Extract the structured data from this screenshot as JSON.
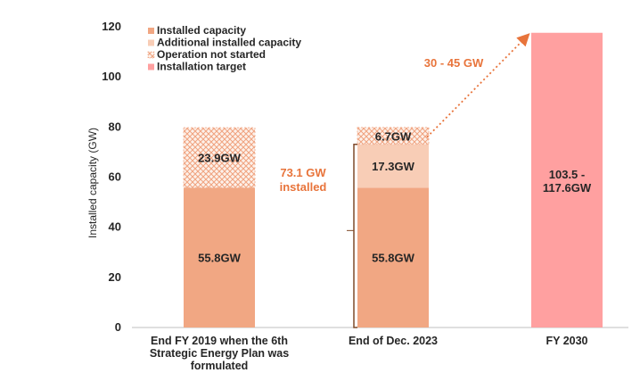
{
  "chart_data": {
    "type": "bar",
    "stacked": true,
    "title": "",
    "xlabel": "",
    "ylabel": "Installed capacity (GW)",
    "ylim": [
      0,
      120
    ],
    "yticks": [
      0,
      20,
      40,
      60,
      80,
      100,
      120
    ],
    "grid": false,
    "legend_position": "top-left",
    "categories": [
      [
        "End FY 2019 when the 6th",
        "Strategic Energy Plan was",
        "formulated"
      ],
      [
        "End of Dec. 2023"
      ],
      [
        "FY 2030"
      ]
    ],
    "series": [
      {
        "name": "Installed capacity",
        "color": "#f1a783",
        "pattern": "solid",
        "values": [
          55.8,
          55.8,
          null
        ],
        "labels": [
          "55.8GW",
          "55.8GW",
          ""
        ]
      },
      {
        "name": "Additional installed capacity",
        "color": "#f8cdb6",
        "pattern": "solid",
        "values": [
          null,
          17.3,
          null
        ],
        "labels": [
          "",
          "17.3GW",
          ""
        ]
      },
      {
        "name": "Operation not started",
        "color": "#f4b79a",
        "pattern": "crosshatch",
        "values": [
          23.9,
          6.7,
          null
        ],
        "labels": [
          "23.9GW",
          "6.7GW",
          ""
        ]
      },
      {
        "name": "Installation target",
        "color": "#ffa0a0",
        "pattern": "solid",
        "values": [
          null,
          null,
          117.6
        ],
        "labels": [
          "",
          "",
          "103.5 -\n117.6GW"
        ]
      }
    ],
    "annotations": [
      {
        "text": "73.1 GW\ninstalled",
        "color": "#e8743b",
        "spans": [
          0,
          73.1
        ],
        "bar": 1
      },
      {
        "text": "30 - 45 GW",
        "color": "#e8743b",
        "arrow_from": [
          1,
          73.1
        ],
        "arrow_to": [
          2,
          117.6
        ]
      }
    ]
  },
  "colors": {
    "text": "#262626",
    "axis": "#bfbfbf",
    "accent": "#e8743b",
    "bracket": "#7f4a2a"
  }
}
